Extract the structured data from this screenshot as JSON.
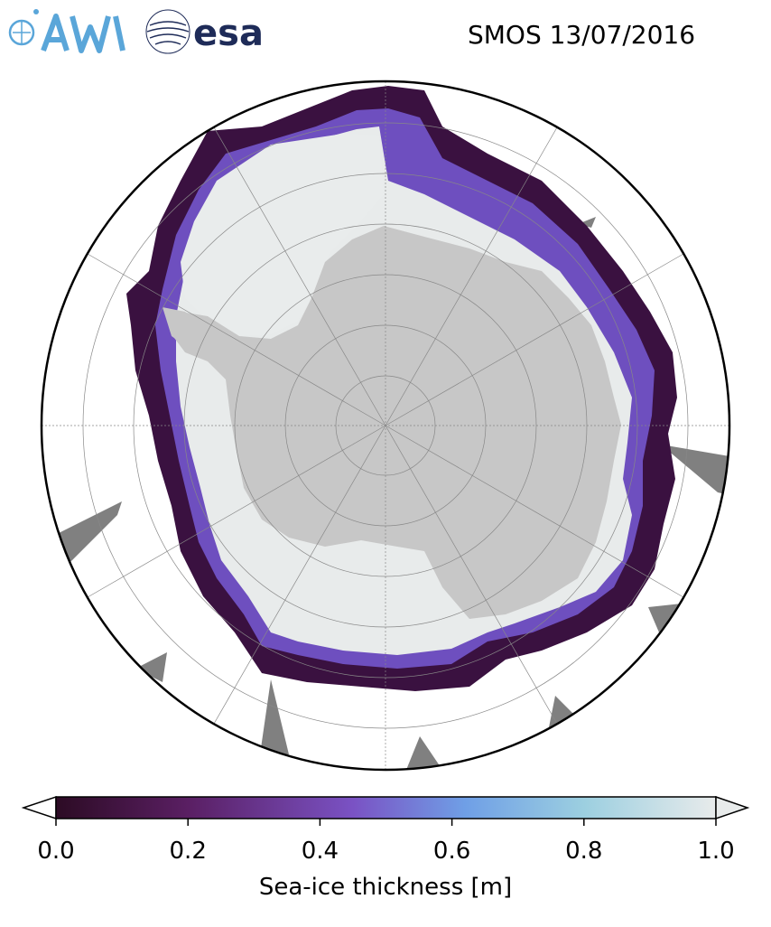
{
  "title": "SMOS 13/07/2016",
  "logos": {
    "awi": "AWI",
    "esa": "esa"
  },
  "colors": {
    "land": "#c7c7c7",
    "thin_ice_dark": "#2c0b24",
    "ice_mid": "#6e3a9f",
    "ice_blue": "#6f9fe6",
    "thick_ice": "#e8ebeb",
    "no_data": "#808080",
    "grid": "#888888"
  },
  "colorbar": {
    "label": "Sea-ice thickness [m]",
    "min": 0.0,
    "max": 1.0,
    "ticks": [
      "0.0",
      "0.2",
      "0.4",
      "0.6",
      "0.8",
      "1.0"
    ],
    "stops": [
      "#2c0b24",
      "#5a1f63",
      "#7a52c4",
      "#6f9fe6",
      "#9ccfe0",
      "#e8ebeb"
    ]
  }
}
